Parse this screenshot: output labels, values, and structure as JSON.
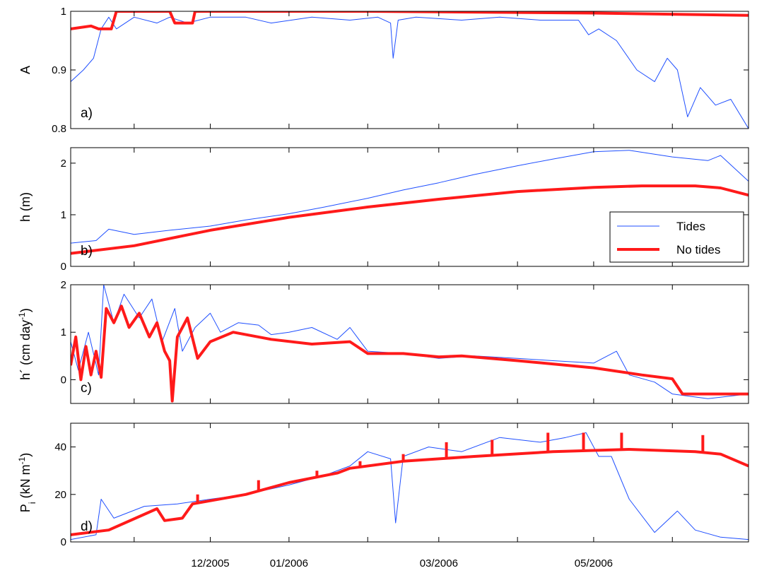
{
  "colors": {
    "tides": "#1f4fff",
    "no_tides": "#ff1a1a",
    "axes": "#000000",
    "background": "#ffffff"
  },
  "legend": {
    "placement": "bottom-right of panel b",
    "entries": [
      "Tides",
      "No tides"
    ]
  },
  "x_axis": {
    "start": "2005-10-07",
    "end": "2006-07-01",
    "tick_dates": [
      "2005-11-01",
      "2005-12-01",
      "2006-01-01",
      "2006-02-01",
      "2006-03-01",
      "2006-04-01",
      "2006-05-01",
      "2006-06-01"
    ],
    "labels": [
      {
        "date": "2005-12-01",
        "text": "12/2005"
      },
      {
        "date": "2006-01-01",
        "text": "01/2006"
      },
      {
        "date": "2006-03-01",
        "text": "03/2006"
      },
      {
        "date": "2006-05-01",
        "text": "05/2006"
      }
    ]
  },
  "chart_data": [
    {
      "type": "line",
      "panel_label": "a)",
      "ylabel": "A",
      "ylim": [
        0.8,
        1.0
      ],
      "yticks": [
        0.8,
        0.9,
        1.0
      ],
      "yticklabels": [
        "0.8",
        "0.9",
        "1"
      ],
      "grid": false,
      "series": [
        {
          "name": "Tides",
          "color": "#1f4fff",
          "width": 1,
          "x": [
            "2005-10-07",
            "2005-10-12",
            "2005-10-16",
            "2005-10-19",
            "2005-10-22",
            "2005-10-25",
            "2005-11-01",
            "2005-11-10",
            "2005-11-15",
            "2005-11-22",
            "2005-12-01",
            "2005-12-15",
            "2005-12-25",
            "2006-01-10",
            "2006-01-25",
            "2006-02-05",
            "2006-02-10",
            "2006-02-11",
            "2006-02-13",
            "2006-02-20",
            "2006-03-10",
            "2006-03-25",
            "2006-04-10",
            "2006-04-25",
            "2006-04-29",
            "2006-05-03",
            "2006-05-10",
            "2006-05-18",
            "2006-05-25",
            "2006-05-30",
            "2006-06-03",
            "2006-06-07",
            "2006-06-12",
            "2006-06-18",
            "2006-06-24",
            "2006-07-01"
          ],
          "y": [
            0.88,
            0.9,
            0.92,
            0.97,
            0.99,
            0.97,
            0.99,
            0.98,
            0.99,
            0.98,
            0.99,
            0.99,
            0.98,
            0.99,
            0.985,
            0.99,
            0.98,
            0.92,
            0.985,
            0.99,
            0.985,
            0.99,
            0.985,
            0.985,
            0.96,
            0.97,
            0.95,
            0.9,
            0.88,
            0.92,
            0.9,
            0.82,
            0.87,
            0.84,
            0.85,
            0.8
          ]
        },
        {
          "name": "No tides",
          "color": "#ff1a1a",
          "width": 4,
          "x": [
            "2005-10-07",
            "2005-10-15",
            "2005-10-18",
            "2005-10-23",
            "2005-10-25",
            "2005-11-15",
            "2005-11-17",
            "2005-11-24",
            "2005-11-25",
            "2006-02-01",
            "2006-05-01",
            "2006-07-01"
          ],
          "y": [
            0.97,
            0.975,
            0.97,
            0.97,
            1.0,
            1.0,
            0.98,
            0.98,
            1.0,
            1.0,
            0.997,
            0.993
          ]
        }
      ]
    },
    {
      "type": "line",
      "panel_label": "b)",
      "ylabel": "h (m)",
      "ylim": [
        0,
        2.3
      ],
      "yticks": [
        0,
        1,
        2
      ],
      "yticklabels": [
        "0",
        "1",
        "2"
      ],
      "grid": false,
      "series": [
        {
          "name": "Tides",
          "color": "#1f4fff",
          "width": 1,
          "x": [
            "2005-10-07",
            "2005-10-17",
            "2005-10-22",
            "2005-11-01",
            "2005-11-15",
            "2005-12-01",
            "2005-12-15",
            "2006-01-01",
            "2006-01-15",
            "2006-02-01",
            "2006-02-15",
            "2006-03-01",
            "2006-03-15",
            "2006-04-01",
            "2006-04-15",
            "2006-05-01",
            "2006-05-15",
            "2006-06-01",
            "2006-06-15",
            "2006-06-20",
            "2006-07-01"
          ],
          "y": [
            0.45,
            0.5,
            0.72,
            0.62,
            0.7,
            0.78,
            0.9,
            1.02,
            1.15,
            1.32,
            1.48,
            1.62,
            1.78,
            1.95,
            2.08,
            2.22,
            2.25,
            2.12,
            2.05,
            2.15,
            1.65
          ]
        },
        {
          "name": "No tides",
          "color": "#ff1a1a",
          "width": 4,
          "x": [
            "2005-10-07",
            "2005-11-01",
            "2005-12-01",
            "2006-01-01",
            "2006-02-01",
            "2006-03-01",
            "2006-04-01",
            "2006-05-01",
            "2006-05-20",
            "2006-06-10",
            "2006-06-20",
            "2006-07-01"
          ],
          "y": [
            0.25,
            0.4,
            0.7,
            0.95,
            1.15,
            1.3,
            1.45,
            1.53,
            1.56,
            1.56,
            1.52,
            1.38
          ]
        }
      ]
    },
    {
      "type": "line",
      "panel_label": "c)",
      "ylabel": "h´ (cm day",
      "ylabel_sup": "-1",
      "ylabel_close": ")",
      "ylim": [
        -0.5,
        2.0
      ],
      "yticks": [
        0,
        1,
        2
      ],
      "yticklabels": [
        "0",
        "1",
        "2"
      ],
      "grid": false,
      "series": [
        {
          "name": "Tides",
          "color": "#1f4fff",
          "width": 1,
          "x": [
            "2005-10-07",
            "2005-10-10",
            "2005-10-14",
            "2005-10-18",
            "2005-10-20",
            "2005-10-24",
            "2005-10-28",
            "2005-11-03",
            "2005-11-08",
            "2005-11-12",
            "2005-11-17",
            "2005-11-20",
            "2005-11-25",
            "2005-12-01",
            "2005-12-05",
            "2005-12-12",
            "2005-12-20",
            "2005-12-25",
            "2006-01-01",
            "2006-01-10",
            "2006-01-20",
            "2006-01-25",
            "2006-02-01",
            "2006-02-15",
            "2006-03-01",
            "2006-03-15",
            "2006-04-01",
            "2006-04-15",
            "2006-05-01",
            "2006-05-10",
            "2006-05-15",
            "2006-05-25",
            "2006-06-01",
            "2006-06-15",
            "2006-07-01"
          ],
          "y": [
            0.8,
            0.2,
            1.0,
            0.1,
            2.0,
            1.2,
            1.8,
            1.3,
            1.7,
            0.8,
            1.5,
            0.6,
            1.1,
            1.4,
            1.0,
            1.2,
            1.15,
            0.95,
            1.0,
            1.1,
            0.85,
            1.1,
            0.6,
            0.55,
            0.45,
            0.5,
            0.45,
            0.4,
            0.35,
            0.6,
            0.1,
            -0.05,
            -0.3,
            -0.4,
            -0.3
          ]
        },
        {
          "name": "No tides",
          "color": "#ff1a1a",
          "width": 4,
          "x": [
            "2005-10-07",
            "2005-10-09",
            "2005-10-11",
            "2005-10-13",
            "2005-10-15",
            "2005-10-17",
            "2005-10-19",
            "2005-10-21",
            "2005-10-24",
            "2005-10-27",
            "2005-10-30",
            "2005-11-03",
            "2005-11-07",
            "2005-11-10",
            "2005-11-13",
            "2005-11-15",
            "2005-11-16",
            "2005-11-18",
            "2005-11-22",
            "2005-11-26",
            "2005-12-01",
            "2005-12-10",
            "2005-12-25",
            "2006-01-10",
            "2006-01-25",
            "2006-02-01",
            "2006-02-15",
            "2006-03-01",
            "2006-03-10",
            "2006-04-01",
            "2006-05-01",
            "2006-05-20",
            "2006-06-01",
            "2006-06-05",
            "2006-06-15",
            "2006-07-01"
          ],
          "y": [
            0.3,
            0.9,
            0.0,
            0.7,
            0.1,
            0.6,
            0.05,
            1.5,
            1.2,
            1.55,
            1.1,
            1.4,
            0.9,
            1.2,
            0.6,
            0.4,
            -0.45,
            0.9,
            1.3,
            0.45,
            0.8,
            1.0,
            0.85,
            0.75,
            0.8,
            0.55,
            0.55,
            0.48,
            0.5,
            0.4,
            0.25,
            0.1,
            0.02,
            -0.3,
            -0.3,
            -0.3
          ]
        }
      ]
    },
    {
      "type": "line",
      "panel_label": "d)",
      "ylabel": "P",
      "ylabel_sub": "i",
      "ylabel_rest": " (kN m",
      "ylabel_sup": "-1",
      "ylabel_close": ")",
      "ylim": [
        0,
        50
      ],
      "yticks": [
        0,
        20,
        40
      ],
      "yticklabels": [
        "0",
        "20",
        "40"
      ],
      "grid": false,
      "series": [
        {
          "name": "Tides",
          "color": "#1f4fff",
          "width": 1,
          "x": [
            "2005-10-07",
            "2005-10-17",
            "2005-10-19",
            "2005-10-24",
            "2005-11-05",
            "2005-11-18",
            "2005-12-01",
            "2005-12-15",
            "2006-01-01",
            "2006-01-15",
            "2006-01-25",
            "2006-02-01",
            "2006-02-10",
            "2006-02-12",
            "2006-02-15",
            "2006-02-25",
            "2006-03-10",
            "2006-03-25",
            "2006-04-10",
            "2006-04-20",
            "2006-04-28",
            "2006-05-03",
            "2006-05-08",
            "2006-05-15",
            "2006-05-25",
            "2006-06-03",
            "2006-06-10",
            "2006-06-20",
            "2006-07-01"
          ],
          "y": [
            1,
            3,
            18,
            10,
            15,
            16,
            18,
            20,
            24,
            28,
            32,
            38,
            35,
            8,
            36,
            40,
            38,
            44,
            42,
            44,
            46,
            36,
            36,
            18,
            4,
            13,
            5,
            2,
            1
          ]
        },
        {
          "name": "No tides",
          "color": "#ff1a1a",
          "width": 4,
          "x": [
            "2005-10-07",
            "2005-10-22",
            "2005-11-10",
            "2005-11-13",
            "2005-11-20",
            "2005-11-24",
            "2005-12-15",
            "2006-01-01",
            "2006-01-20",
            "2006-01-25",
            "2006-02-15",
            "2006-03-15",
            "2006-04-15",
            "2006-05-15",
            "2006-06-10",
            "2006-06-20",
            "2006-07-01"
          ],
          "y": [
            3,
            5,
            14,
            9,
            10,
            16,
            20,
            25,
            29,
            31,
            34,
            36,
            38,
            39,
            38,
            37,
            32
          ]
        }
      ],
      "spikes": {
        "color": "#ff1a1a",
        "x": [
          "2005-11-26",
          "2005-12-20",
          "2006-01-12",
          "2006-01-29",
          "2006-02-15",
          "2006-03-04",
          "2006-03-22",
          "2006-04-13",
          "2006-04-27",
          "2006-05-12",
          "2006-06-13"
        ],
        "y_top": [
          20,
          26,
          30,
          34,
          37,
          42,
          43,
          46,
          46,
          46,
          45
        ]
      }
    }
  ]
}
